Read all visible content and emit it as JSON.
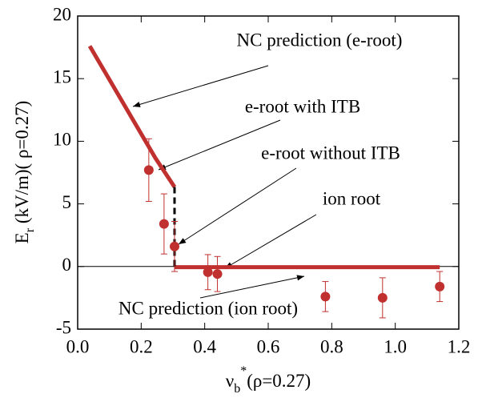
{
  "chart_data": {
    "type": "scatter",
    "xlabel": {
      "main": "ν",
      "sub": "b",
      "sup": "*",
      "rest": "(ρ=0.27)"
    },
    "ylabel": {
      "main": "E",
      "sub": "r",
      "rest": " (kV/m)( ρ=0.27)"
    },
    "xlim": [
      0,
      1.2
    ],
    "ylim": [
      -5,
      20
    ],
    "xticks": [
      {
        "value": 0,
        "label": "0.0"
      },
      0.2,
      0.4,
      0.6,
      0.8,
      {
        "value": 1,
        "label": "1.0"
      },
      1.2
    ],
    "yticks": [
      -5,
      0,
      5,
      10,
      15,
      20
    ],
    "hline": 0,
    "series": [
      {
        "name": "NC prediction (e-root)",
        "kind": "line",
        "color": "#c0302f",
        "x": [
          0.038,
          0.245,
          0.305
        ],
        "values": [
          17.6,
          8.65,
          6.35
        ]
      },
      {
        "name": "NC prediction (ion root)",
        "kind": "line",
        "color": "#c0302f",
        "x": [
          0.305,
          1.14
        ],
        "values": [
          -0.05,
          -0.05
        ]
      },
      {
        "kind": "dashed",
        "color": "#000000",
        "x": [
          0.305,
          0.305
        ],
        "values": [
          6.35,
          0
        ]
      },
      {
        "kind": "points",
        "color": "#c0302f",
        "x": [
          0.224,
          0.272,
          0.305,
          0.41,
          0.44,
          0.78,
          0.96,
          1.14
        ],
        "values": [
          7.7,
          3.4,
          1.6,
          -0.45,
          -0.6,
          -2.4,
          -2.5,
          -1.6
        ],
        "errors": [
          2.5,
          2.4,
          2.0,
          1.4,
          1.4,
          1.2,
          1.6,
          1.2
        ]
      }
    ],
    "annotations": [
      "e-root with ITB",
      "e-root without ITB",
      "ion root"
    ]
  }
}
